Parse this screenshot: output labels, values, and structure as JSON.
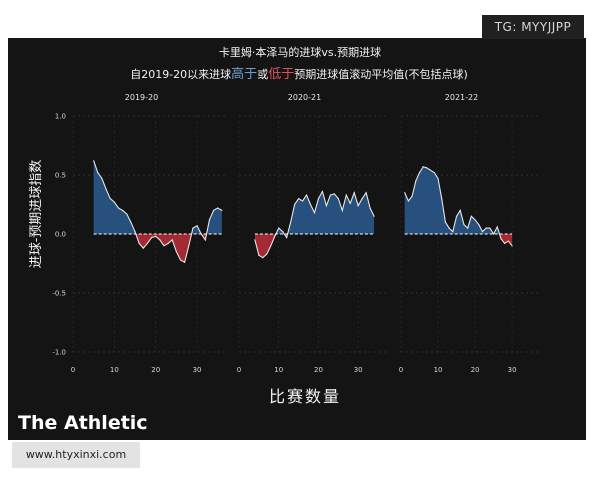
{
  "badge": "TG: MYYJJPP",
  "watermark": "www.htyxinxi.com",
  "brand": "The Athletic",
  "chart_data": {
    "type": "area",
    "title": "卡里姆·本泽马的进球vs.预期进球",
    "subtitle_parts": [
      "自2019-20以来进球",
      "高于",
      "或",
      "低于",
      "预期进球值滚动平均值(不包括点球)"
    ],
    "xlabel": "比赛数量",
    "ylabel": "进球-预期进球指数",
    "ylim": [
      -1.0,
      1.0
    ],
    "yticks": [
      "1.0",
      "0.5",
      "0.0",
      "-0.5",
      "-1.0"
    ],
    "yticks_values": [
      1.0,
      0.5,
      0.0,
      -0.5,
      -1.0
    ],
    "xticks": [
      "0",
      "10",
      "20",
      "30"
    ],
    "xticks_values": [
      0,
      10,
      20,
      30
    ],
    "xlim": [
      0,
      37
    ],
    "grid": true,
    "colors": {
      "above": "#27507f",
      "below": "#a32a33",
      "line": "#e6e6e6",
      "zero": "#ffffff",
      "highlight_above": "#6b9ed3",
      "highlight_below": "#e0525b"
    },
    "panels": [
      {
        "name": "2019-20",
        "x": [
          5,
          6,
          7,
          8,
          9,
          10,
          11,
          12,
          13,
          14,
          15,
          16,
          17,
          18,
          19,
          20,
          21,
          22,
          23,
          24,
          25,
          26,
          27,
          28,
          29,
          30,
          31,
          32,
          33,
          34,
          35,
          36
        ],
        "values": [
          0.62,
          0.52,
          0.47,
          0.38,
          0.3,
          0.27,
          0.22,
          0.2,
          0.17,
          0.1,
          0.02,
          -0.08,
          -0.12,
          -0.08,
          -0.03,
          -0.02,
          -0.05,
          -0.1,
          -0.08,
          -0.05,
          -0.15,
          -0.22,
          -0.24,
          -0.1,
          0.05,
          0.07,
          0.0,
          -0.05,
          0.12,
          0.2,
          0.22,
          0.2
        ]
      },
      {
        "name": "2020-21",
        "x": [
          4,
          5,
          6,
          7,
          8,
          9,
          10,
          11,
          12,
          13,
          14,
          15,
          16,
          17,
          18,
          19,
          20,
          21,
          22,
          23,
          24,
          25,
          26,
          27,
          28,
          29,
          30,
          31,
          32,
          33,
          34
        ],
        "values": [
          -0.05,
          -0.18,
          -0.2,
          -0.17,
          -0.1,
          -0.02,
          0.05,
          0.02,
          -0.03,
          0.1,
          0.25,
          0.3,
          0.28,
          0.33,
          0.25,
          0.18,
          0.3,
          0.36,
          0.24,
          0.33,
          0.34,
          0.3,
          0.2,
          0.33,
          0.26,
          0.35,
          0.24,
          0.3,
          0.35,
          0.22,
          0.15
        ]
      },
      {
        "name": "2021-22",
        "x": [
          1,
          2,
          3,
          4,
          5,
          6,
          7,
          8,
          9,
          10,
          11,
          12,
          13,
          14,
          15,
          16,
          17,
          18,
          19,
          20,
          21,
          22,
          23,
          24,
          25,
          26,
          27,
          28,
          29,
          30
        ],
        "values": [
          0.35,
          0.28,
          0.32,
          0.45,
          0.52,
          0.57,
          0.56,
          0.54,
          0.52,
          0.47,
          0.3,
          0.1,
          0.05,
          0.02,
          0.15,
          0.2,
          0.08,
          0.05,
          0.15,
          0.12,
          0.08,
          0.02,
          0.05,
          0.05,
          0.0,
          0.06,
          -0.04,
          -0.08,
          -0.06,
          -0.1
        ]
      }
    ]
  }
}
